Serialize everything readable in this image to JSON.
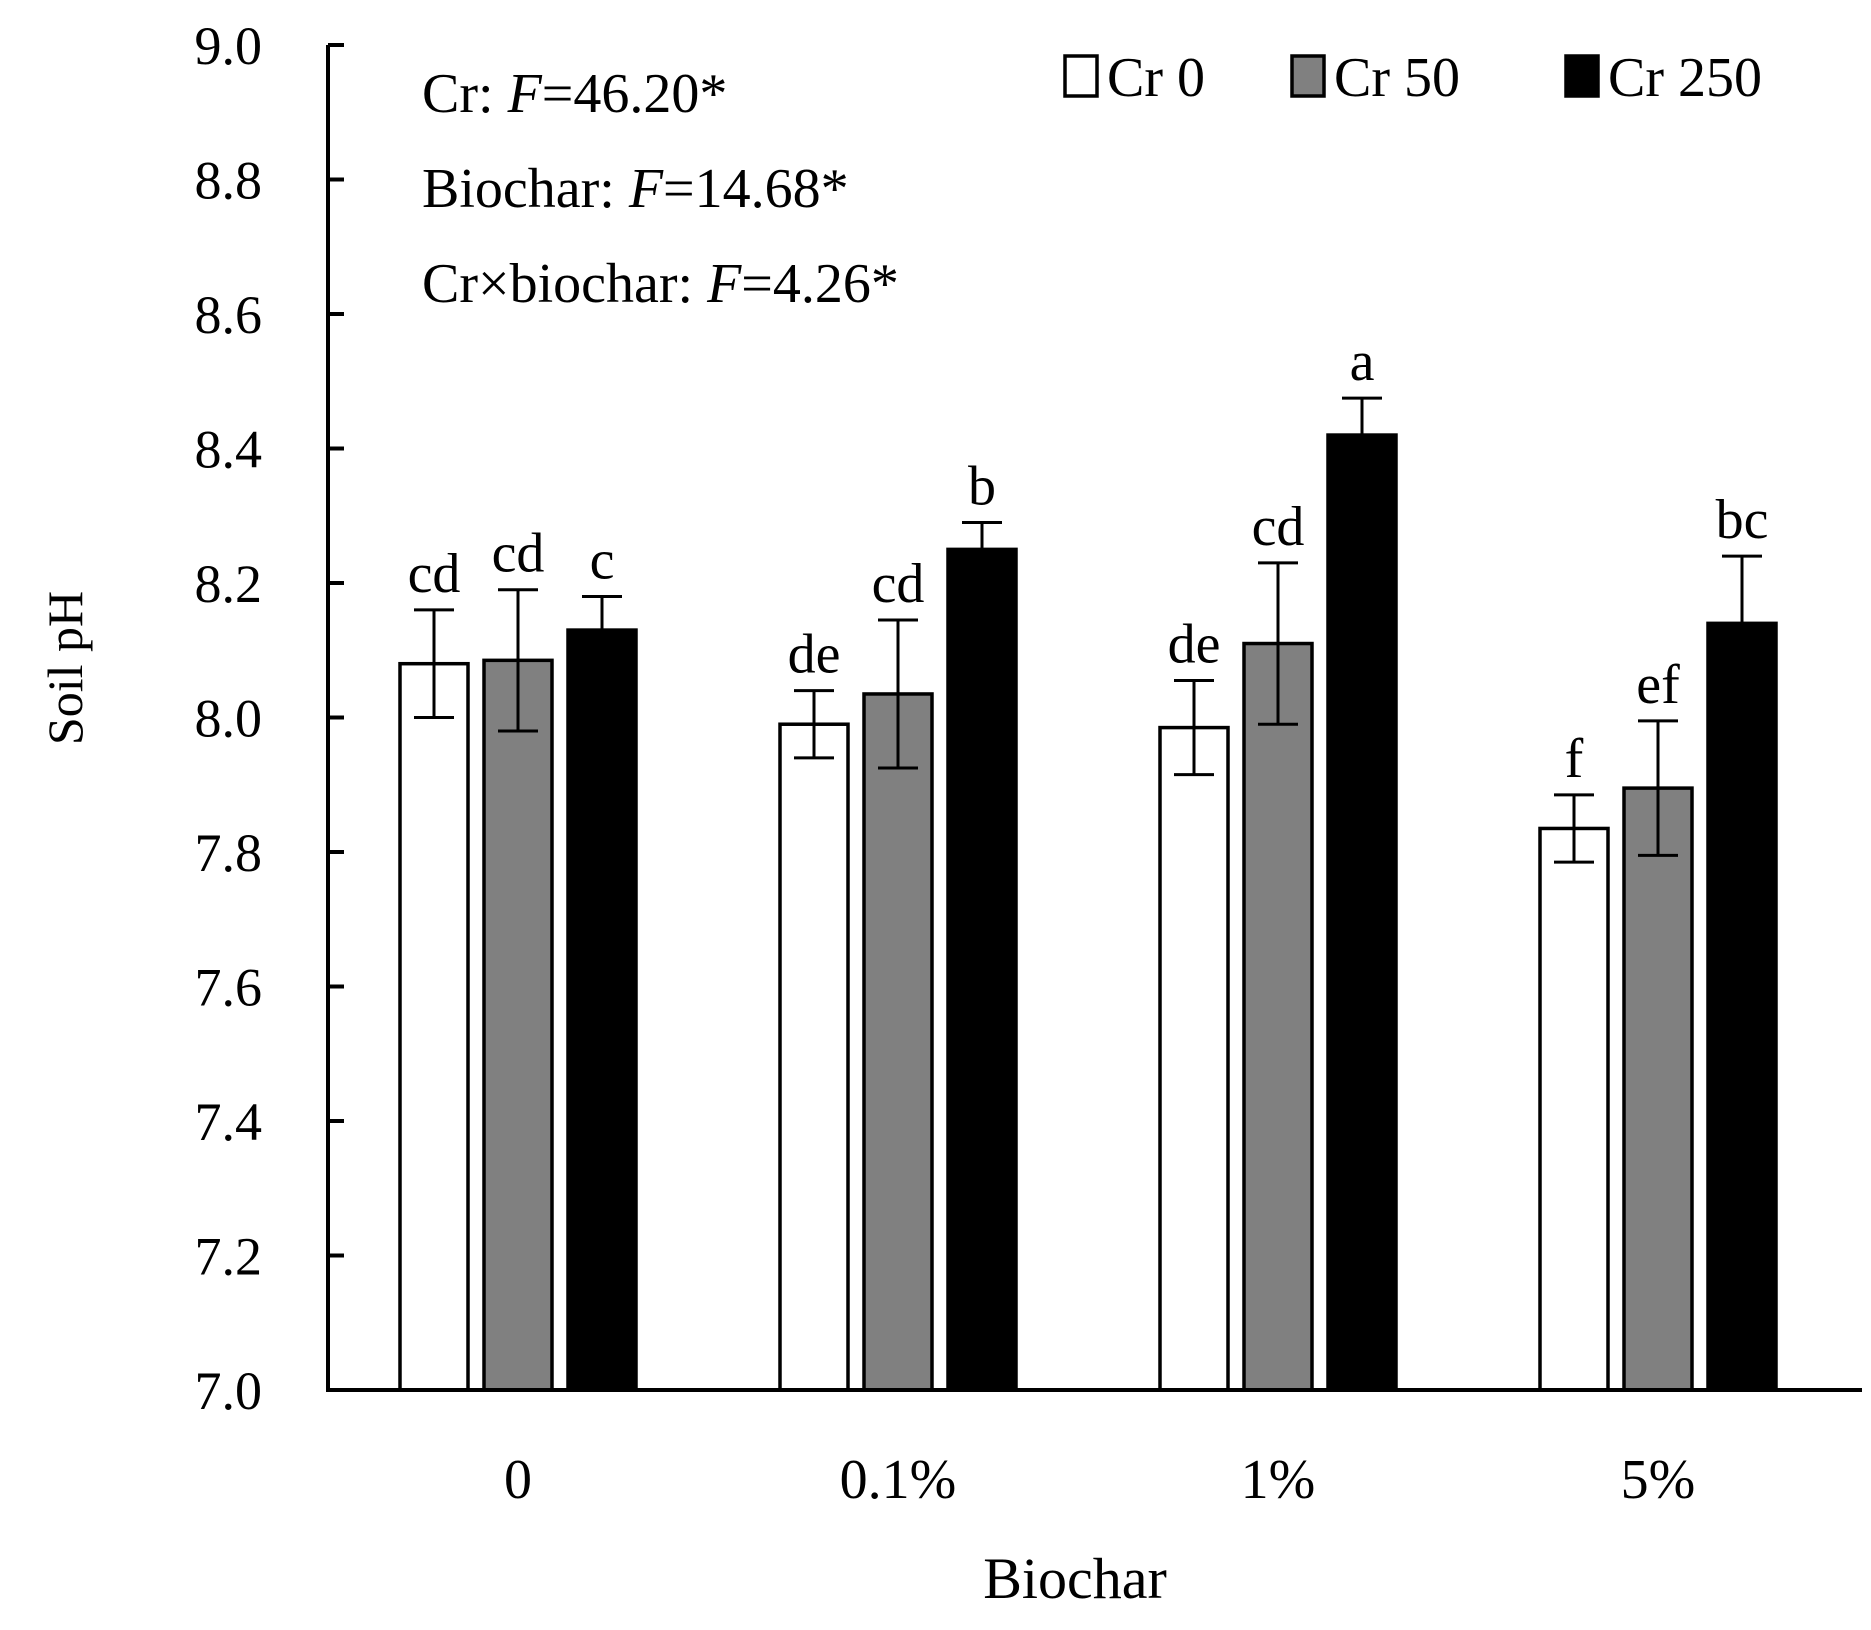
{
  "chart_data": {
    "type": "bar",
    "ylabel": "Soil pH",
    "xlabel": "Biochar",
    "ylim": [
      7.0,
      9.0
    ],
    "yticks": [
      "7.0",
      "7.2",
      "7.4",
      "7.6",
      "7.8",
      "8.0",
      "8.2",
      "8.4",
      "8.6",
      "8.8",
      "9.0"
    ],
    "categories": [
      "0",
      "0.1%",
      "1%",
      "5%"
    ],
    "series": [
      {
        "name": "Cr 0",
        "color": "#ffffff",
        "values": [
          8.08,
          7.99,
          7.985,
          7.835
        ],
        "errors": [
          0.08,
          0.05,
          0.07,
          0.05
        ],
        "letters": [
          "cd",
          "de",
          "de",
          "f"
        ]
      },
      {
        "name": "Cr 50",
        "color": "#808080",
        "values": [
          8.085,
          8.035,
          8.11,
          7.895
        ],
        "errors": [
          0.105,
          0.11,
          0.12,
          0.1
        ],
        "letters": [
          "cd",
          "cd",
          "cd",
          "ef"
        ]
      },
      {
        "name": "Cr 250",
        "color": "#000000",
        "values": [
          8.13,
          8.25,
          8.42,
          8.14
        ],
        "errors": [
          0.05,
          0.04,
          0.055,
          0.1
        ],
        "letters": [
          "c",
          "b",
          "a",
          "bc"
        ]
      }
    ],
    "legend_position": "top-right",
    "annotations": [
      {
        "prefix": "Cr: ",
        "italic": "F",
        "suffix": "=46.20*"
      },
      {
        "prefix": "Biochar: ",
        "italic": "F",
        "suffix": "=14.68*"
      },
      {
        "prefix": "Cr×biochar: ",
        "italic": "F",
        "suffix": "=4.26*"
      }
    ]
  }
}
